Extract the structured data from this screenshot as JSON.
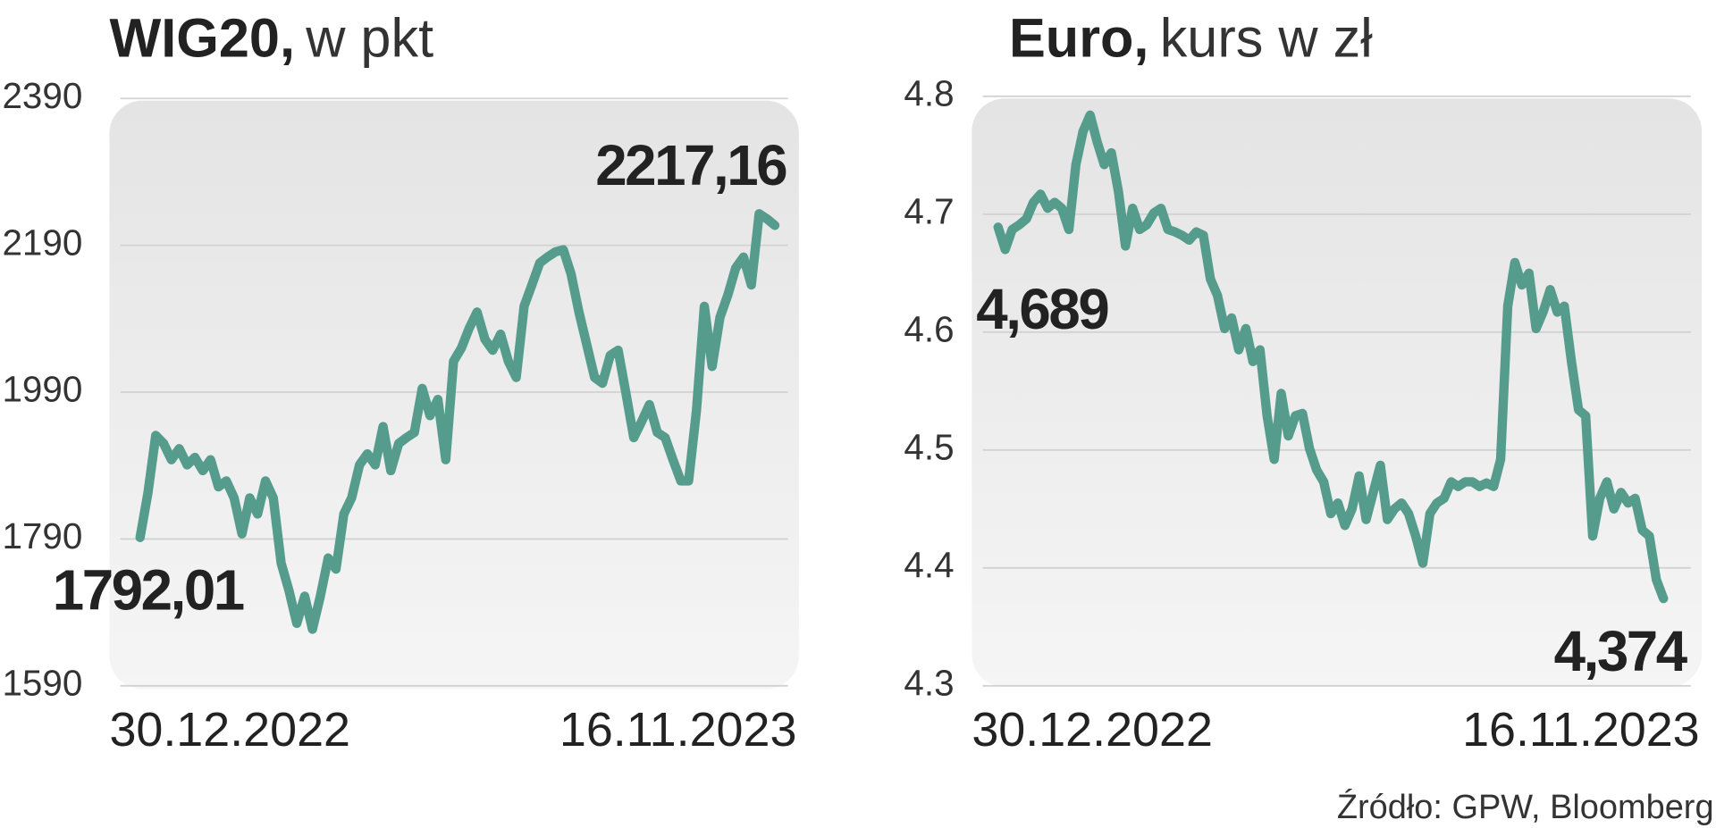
{
  "chart_data": [
    {
      "type": "line",
      "title": "WIG20,",
      "unit": "w pkt",
      "color": "#559c8d",
      "grid": true,
      "ylim": [
        1590,
        2390
      ],
      "yticks": [
        1590,
        1790,
        1990,
        2190,
        2390
      ],
      "categories": [
        "30.12.2022",
        null,
        null,
        null,
        null,
        null,
        null,
        null,
        null,
        null,
        null,
        null,
        null,
        null,
        null,
        null,
        null,
        null,
        null,
        null,
        null,
        null,
        null,
        null,
        null,
        null,
        null,
        null,
        null,
        null,
        null,
        null,
        null,
        null,
        null,
        null,
        null,
        null,
        null,
        null,
        null,
        null,
        null,
        null,
        null,
        null,
        null,
        null,
        null,
        null,
        null,
        null,
        null,
        null,
        null,
        null,
        null,
        null,
        null,
        null,
        null,
        null,
        null,
        null,
        null,
        null,
        null,
        null,
        null,
        null,
        null,
        null,
        null,
        null,
        null,
        null,
        null,
        null,
        null,
        null,
        null,
        "16.11.2023"
      ],
      "values": [
        1792.01,
        1853,
        1931,
        1920,
        1898,
        1913,
        1891,
        1901,
        1883,
        1898,
        1861,
        1869,
        1846,
        1797,
        1846,
        1824,
        1869,
        1846,
        1757,
        1720,
        1675,
        1712,
        1667,
        1712,
        1764,
        1749,
        1824,
        1846,
        1891,
        1906,
        1891,
        1943,
        1883,
        1920,
        1928,
        1935,
        1995,
        1958,
        1980,
        1898,
        2032,
        2050,
        2077,
        2099,
        2062,
        2047,
        2069,
        2032,
        2010,
        2107,
        2136,
        2166,
        2174,
        2181,
        2184,
        2151,
        2099,
        2055,
        2010,
        2002,
        2040,
        2047,
        1988,
        1928,
        1950,
        1973,
        1935,
        1928,
        1898,
        1869,
        1869,
        1965,
        2107,
        2025,
        2092,
        2122,
        2159,
        2174,
        2136,
        2233,
        2226,
        2217.16
      ],
      "value_labels": [
        "1792,01",
        null,
        null,
        null,
        null,
        null,
        null,
        null,
        null,
        null,
        null,
        null,
        null,
        null,
        null,
        null,
        null,
        null,
        null,
        null,
        null,
        null,
        null,
        null,
        null,
        null,
        null,
        null,
        null,
        null,
        null,
        null,
        null,
        null,
        null,
        null,
        null,
        null,
        null,
        null,
        null,
        null,
        null,
        null,
        null,
        null,
        null,
        null,
        null,
        null,
        null,
        null,
        null,
        null,
        null,
        null,
        null,
        null,
        null,
        null,
        null,
        null,
        null,
        null,
        null,
        null,
        null,
        null,
        null,
        null,
        null,
        null,
        null,
        null,
        null,
        null,
        null,
        null,
        null,
        null,
        null,
        "2217,16"
      ]
    },
    {
      "type": "line",
      "title": "Euro,",
      "unit": "kurs w zł",
      "color": "#559c8d",
      "grid": true,
      "ylim": [
        4.3,
        4.8
      ],
      "yticks": [
        4.3,
        4.4,
        4.5,
        4.6,
        4.7,
        4.8
      ],
      "categories": [
        "30.12.2022",
        null,
        null,
        null,
        null,
        null,
        null,
        null,
        null,
        null,
        null,
        null,
        null,
        null,
        null,
        null,
        null,
        null,
        null,
        null,
        null,
        null,
        null,
        null,
        null,
        null,
        null,
        null,
        null,
        null,
        null,
        null,
        null,
        null,
        null,
        null,
        null,
        null,
        null,
        null,
        null,
        null,
        null,
        null,
        null,
        null,
        null,
        null,
        null,
        null,
        null,
        null,
        null,
        null,
        null,
        null,
        null,
        null,
        null,
        null,
        null,
        null,
        null,
        null,
        null,
        null,
        null,
        null,
        null,
        null,
        null,
        null,
        null,
        null,
        null,
        null,
        null,
        null,
        null,
        null,
        null,
        null,
        null,
        null,
        null,
        null,
        null,
        null,
        null,
        null,
        null,
        null,
        null,
        null,
        "16.11.2023"
      ],
      "values": [
        4.689,
        4.67,
        4.687,
        4.691,
        4.696,
        4.71,
        4.717,
        4.705,
        4.71,
        4.705,
        4.687,
        4.742,
        4.77,
        4.784,
        4.761,
        4.742,
        4.752,
        4.719,
        4.673,
        4.705,
        4.687,
        4.691,
        4.701,
        4.705,
        4.687,
        4.685,
        4.682,
        4.678,
        4.685,
        4.682,
        4.645,
        4.631,
        4.603,
        4.612,
        4.585,
        4.603,
        4.575,
        4.585,
        4.529,
        4.492,
        4.548,
        4.512,
        4.529,
        4.531,
        4.501,
        4.483,
        4.473,
        4.446,
        4.455,
        4.436,
        4.45,
        4.478,
        4.441,
        4.464,
        4.487,
        4.441,
        4.45,
        4.455,
        4.446,
        4.427,
        4.404,
        4.446,
        4.455,
        4.459,
        4.473,
        4.469,
        4.473,
        4.473,
        4.469,
        4.472,
        4.469,
        4.492,
        4.622,
        4.659,
        4.64,
        4.65,
        4.603,
        4.617,
        4.636,
        4.617,
        4.622,
        4.575,
        4.534,
        4.529,
        4.427,
        4.459,
        4.473,
        4.45,
        4.464,
        4.455,
        4.459,
        4.432,
        4.427,
        4.39,
        4.374
      ],
      "value_labels": [
        "4,689",
        null,
        null,
        null,
        null,
        null,
        null,
        null,
        null,
        null,
        null,
        null,
        null,
        null,
        null,
        null,
        null,
        null,
        null,
        null,
        null,
        null,
        null,
        null,
        null,
        null,
        null,
        null,
        null,
        null,
        null,
        null,
        null,
        null,
        null,
        null,
        null,
        null,
        null,
        null,
        null,
        null,
        null,
        null,
        null,
        null,
        null,
        null,
        null,
        null,
        null,
        null,
        null,
        null,
        null,
        null,
        null,
        null,
        null,
        null,
        null,
        null,
        null,
        null,
        null,
        null,
        null,
        null,
        null,
        null,
        null,
        null,
        null,
        null,
        null,
        null,
        null,
        null,
        null,
        null,
        null,
        null,
        null,
        null,
        null,
        null,
        null,
        null,
        null,
        null,
        null,
        null,
        null,
        null,
        "4,374"
      ]
    }
  ],
  "source": "Źródło: GPW, Bloomberg"
}
